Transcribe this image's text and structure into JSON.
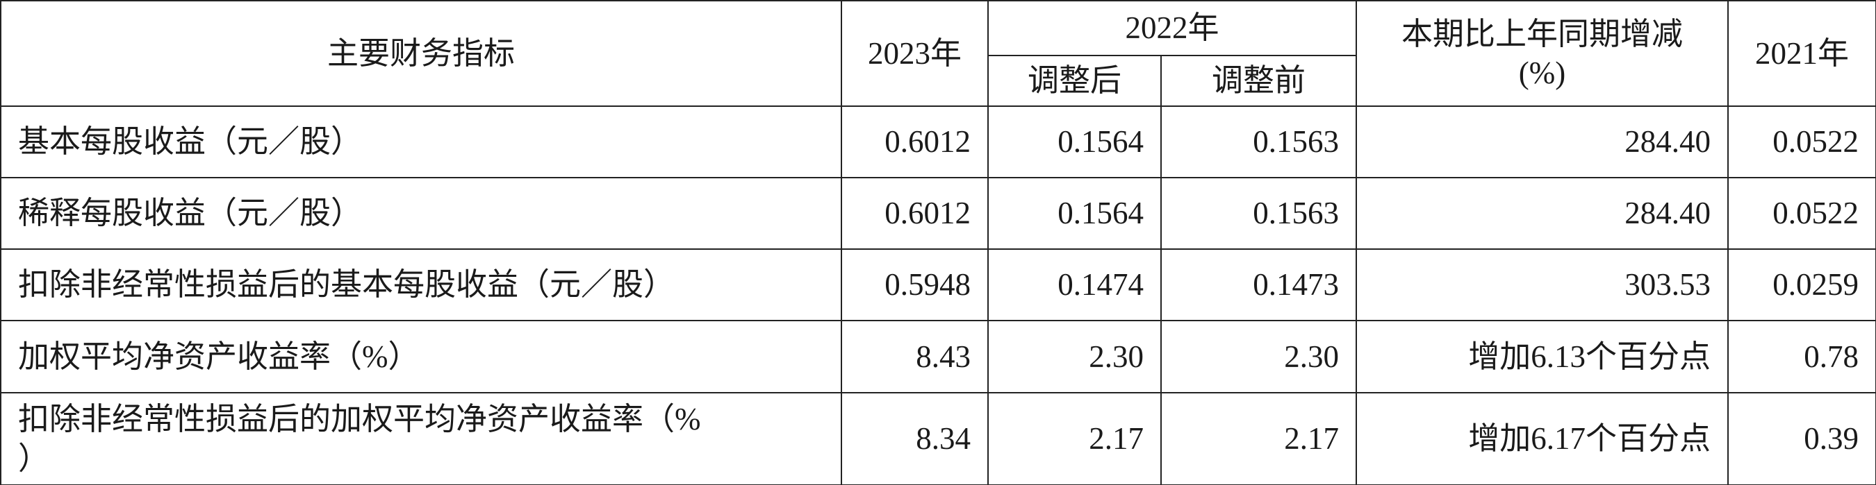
{
  "table": {
    "header": [
      "主要财务指标",
      "2023年",
      "2022年",
      "调整后",
      "调整前",
      "本期比上年同期增减\n(%)",
      "2021年"
    ],
    "rows": [
      [
        "基本每股收益（元／股）",
        "0.6012",
        "0.1564",
        "0.1563",
        "284.40",
        "0.0522"
      ],
      [
        "稀释每股收益（元／股）",
        "0.6012",
        "0.1564",
        "0.1563",
        "284.40",
        "0.0522"
      ],
      [
        "扣除非经常性损益后的基本每股收益（元／股）",
        "0.5948",
        "0.1474",
        "0.1473",
        "303.53",
        "0.0259"
      ],
      [
        "加权平均净资产收益率（%）",
        "8.43",
        "2.30",
        "2.30",
        "增加6.13个百分点",
        "0.78"
      ],
      [
        "扣除非经常性损益后的加权平均净资产收益率（%\n）",
        "8.34",
        "2.17",
        "2.17",
        "增加6.17个百分点",
        "0.39"
      ]
    ]
  }
}
